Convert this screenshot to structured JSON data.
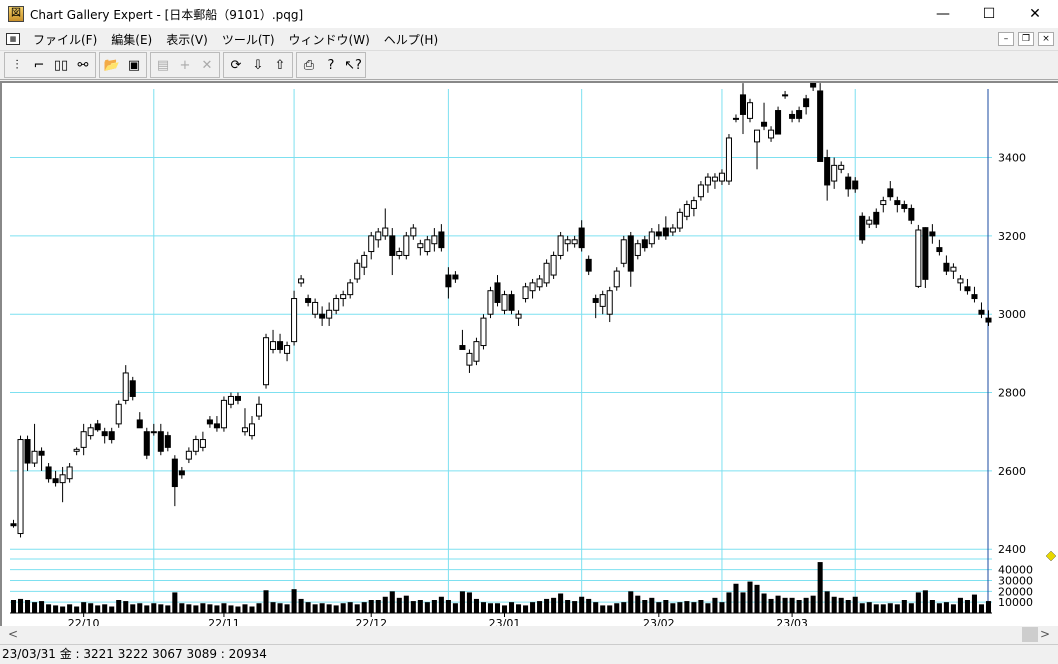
{
  "window": {
    "title": "Chart Gallery Expert - [日本郵船（9101）.pqg]",
    "minimize": "—",
    "maximize": "☐",
    "close": "✕"
  },
  "menu": [
    "ファイル(F)",
    "編集(E)",
    "表示(V)",
    "ツール(T)",
    "ウィンドウ(W)",
    "ヘルプ(H)"
  ],
  "mdi": {
    "minimize": "–",
    "restore": "❐",
    "close": "×"
  },
  "toolbar": {
    "groups": [
      [
        {
          "icon": "candle-chart-icon",
          "glyph": "⫶"
        },
        {
          "icon": "line-chart-icon",
          "glyph": "⌐"
        },
        {
          "icon": "dual-chart-icon",
          "glyph": "▯▯"
        },
        {
          "icon": "binoculars-icon",
          "glyph": "⚯"
        }
      ],
      [
        {
          "icon": "open-folder-icon",
          "glyph": "📂"
        },
        {
          "icon": "save-icon",
          "glyph": "▣"
        }
      ],
      [
        {
          "icon": "properties-icon",
          "glyph": "▤",
          "disabled": true
        },
        {
          "icon": "add-icon",
          "glyph": "+",
          "disabled": true
        },
        {
          "icon": "delete-icon",
          "glyph": "✕",
          "disabled": true
        }
      ],
      [
        {
          "icon": "refresh-icon",
          "glyph": "⟳"
        },
        {
          "icon": "download-icon",
          "glyph": "⇩"
        },
        {
          "icon": "upload-icon",
          "glyph": "⇧"
        }
      ],
      [
        {
          "icon": "print-icon",
          "glyph": "⎙"
        },
        {
          "icon": "help-icon",
          "glyph": "?"
        },
        {
          "icon": "context-help-icon",
          "glyph": "↖?"
        }
      ]
    ]
  },
  "status": "23/03/31 金 : 3221 3222 3067 3089  : 20934",
  "colors": {
    "grid": "#7de0f0",
    "up_fill": "#ffffff",
    "down_fill": "#000000",
    "marker": "#e8d800"
  },
  "chart_data": {
    "type": "candlestick",
    "y_ticks": [
      "3400",
      "3200",
      "3000",
      "2800",
      "2600",
      "2400"
    ],
    "y_tick_values": [
      3400,
      3200,
      3000,
      2800,
      2600,
      2400
    ],
    "ylim": [
      2375,
      3575
    ],
    "volume_ticks": [
      "40000",
      "30000",
      "20000",
      "10000"
    ],
    "volume_tick_values": [
      40000,
      30000,
      20000,
      10000
    ],
    "volume_lim": [
      0,
      48000
    ],
    "x_labels": [
      {
        "label": "22/10",
        "index": 10
      },
      {
        "label": "22/11",
        "index": 30
      },
      {
        "label": "22/12",
        "index": 51
      },
      {
        "label": "23/01",
        "index": 70
      },
      {
        "label": "23/02",
        "index": 92
      },
      {
        "label": "23/03",
        "index": 111
      }
    ],
    "gridlines_at_index": [
      20.5,
      40.5,
      62.5,
      81.5,
      101.5,
      120.5
    ],
    "candles": [
      [
        2465,
        2475,
        2455,
        2460,
        12000
      ],
      [
        2440,
        2690,
        2430,
        2680,
        13000
      ],
      [
        2680,
        2690,
        2600,
        2620,
        12000
      ],
      [
        2620,
        2720,
        2610,
        2650,
        10000
      ],
      [
        2650,
        2660,
        2600,
        2640,
        11000
      ],
      [
        2610,
        2620,
        2570,
        2580,
        8000
      ],
      [
        2580,
        2600,
        2560,
        2570,
        7000
      ],
      [
        2570,
        2610,
        2520,
        2590,
        6000
      ],
      [
        2580,
        2620,
        2570,
        2610,
        8000
      ],
      [
        2650,
        2660,
        2640,
        2655,
        6000
      ],
      [
        2660,
        2720,
        2640,
        2700,
        10000
      ],
      [
        2690,
        2720,
        2680,
        2710,
        9000
      ],
      [
        2720,
        2730,
        2700,
        2705,
        7000
      ],
      [
        2700,
        2710,
        2670,
        2690,
        8000
      ],
      [
        2700,
        2710,
        2670,
        2680,
        6000
      ],
      [
        2720,
        2780,
        2710,
        2770,
        12000
      ],
      [
        2780,
        2870,
        2770,
        2850,
        11000
      ],
      [
        2830,
        2840,
        2780,
        2790,
        8000
      ],
      [
        2730,
        2750,
        2710,
        2710,
        9000
      ],
      [
        2700,
        2710,
        2630,
        2640,
        7000
      ],
      [
        2700,
        2720,
        2690,
        2700,
        9000
      ],
      [
        2700,
        2720,
        2640,
        2650,
        8000
      ],
      [
        2690,
        2700,
        2650,
        2660,
        7000
      ],
      [
        2630,
        2640,
        2510,
        2560,
        19000
      ],
      [
        2600,
        2610,
        2580,
        2590,
        9000
      ],
      [
        2630,
        2660,
        2620,
        2650,
        8000
      ],
      [
        2650,
        2690,
        2640,
        2680,
        7000
      ],
      [
        2660,
        2700,
        2650,
        2680,
        9000
      ],
      [
        2730,
        2740,
        2710,
        2720,
        8000
      ],
      [
        2720,
        2740,
        2700,
        2710,
        7000
      ],
      [
        2710,
        2790,
        2700,
        2780,
        9000
      ],
      [
        2770,
        2800,
        2760,
        2790,
        7000
      ],
      [
        2790,
        2800,
        2770,
        2780,
        6000
      ],
      [
        2700,
        2760,
        2690,
        2710,
        8000
      ],
      [
        2690,
        2740,
        2680,
        2720,
        6000
      ],
      [
        2740,
        2790,
        2730,
        2770,
        9000
      ],
      [
        2820,
        2950,
        2810,
        2940,
        21000
      ],
      [
        2910,
        2960,
        2900,
        2930,
        10000
      ],
      [
        2930,
        2950,
        2900,
        2910,
        9000
      ],
      [
        2900,
        2930,
        2880,
        2920,
        8000
      ],
      [
        2930,
        3060,
        2920,
        3040,
        22000
      ],
      [
        3080,
        3100,
        3070,
        3090,
        13000
      ],
      [
        3040,
        3050,
        3020,
        3030,
        10000
      ],
      [
        3000,
        3040,
        2990,
        3030,
        8000
      ],
      [
        3000,
        3020,
        2970,
        2990,
        9000
      ],
      [
        2990,
        3030,
        2970,
        3010,
        8000
      ],
      [
        3010,
        3050,
        3000,
        3040,
        7000
      ],
      [
        3040,
        3060,
        3020,
        3050,
        9000
      ],
      [
        3050,
        3090,
        3040,
        3080,
        10000
      ],
      [
        3090,
        3140,
        3080,
        3130,
        8000
      ],
      [
        3120,
        3160,
        3100,
        3150,
        10000
      ],
      [
        3160,
        3210,
        3140,
        3200,
        12000
      ],
      [
        3190,
        3220,
        3170,
        3210,
        12000
      ],
      [
        3200,
        3270,
        3190,
        3220,
        15000
      ],
      [
        3200,
        3220,
        3100,
        3150,
        20000
      ],
      [
        3150,
        3170,
        3140,
        3160,
        14000
      ],
      [
        3150,
        3210,
        3140,
        3200,
        16000
      ],
      [
        3200,
        3230,
        3190,
        3220,
        11000
      ],
      [
        3170,
        3190,
        3150,
        3180,
        12000
      ],
      [
        3160,
        3200,
        3150,
        3190,
        10000
      ],
      [
        3180,
        3220,
        3160,
        3200,
        12000
      ],
      [
        3210,
        3230,
        3160,
        3170,
        15000
      ],
      [
        3100,
        3120,
        3040,
        3070,
        12000
      ],
      [
        3100,
        3110,
        3080,
        3090,
        9000
      ],
      [
        2920,
        2960,
        2910,
        2910,
        20000
      ],
      [
        2870,
        2910,
        2850,
        2900,
        19000
      ],
      [
        2880,
        2940,
        2870,
        2930,
        13000
      ],
      [
        2920,
        3000,
        2910,
        2990,
        10000
      ],
      [
        3000,
        3070,
        2990,
        3060,
        9000
      ],
      [
        3080,
        3100,
        3020,
        3030,
        9000
      ],
      [
        3010,
        3060,
        3000,
        3050,
        7000
      ],
      [
        3050,
        3060,
        3000,
        3010,
        10000
      ],
      [
        2990,
        3010,
        2970,
        3000,
        8000
      ],
      [
        3040,
        3080,
        3030,
        3070,
        7000
      ],
      [
        3060,
        3090,
        3040,
        3080,
        10000
      ],
      [
        3070,
        3100,
        3060,
        3090,
        11000
      ],
      [
        3080,
        3140,
        3070,
        3130,
        13000
      ],
      [
        3100,
        3160,
        3090,
        3150,
        14000
      ],
      [
        3150,
        3210,
        3140,
        3200,
        18000
      ],
      [
        3180,
        3200,
        3160,
        3190,
        12000
      ],
      [
        3180,
        3200,
        3170,
        3190,
        11000
      ],
      [
        3220,
        3240,
        3160,
        3170,
        15000
      ],
      [
        3140,
        3150,
        3100,
        3110,
        13000
      ],
      [
        3040,
        3050,
        2990,
        3030,
        10000
      ],
      [
        3020,
        3060,
        3000,
        3050,
        7000
      ],
      [
        3000,
        3070,
        2980,
        3060,
        7000
      ],
      [
        3070,
        3120,
        3060,
        3110,
        9000
      ],
      [
        3130,
        3200,
        3120,
        3190,
        10000
      ],
      [
        3200,
        3210,
        3070,
        3110,
        20000
      ],
      [
        3150,
        3190,
        3140,
        3180,
        16000
      ],
      [
        3190,
        3200,
        3160,
        3170,
        12000
      ],
      [
        3180,
        3220,
        3170,
        3210,
        14000
      ],
      [
        3210,
        3230,
        3190,
        3200,
        10000
      ],
      [
        3220,
        3250,
        3190,
        3200,
        12000
      ],
      [
        3210,
        3230,
        3200,
        3220,
        9000
      ],
      [
        3220,
        3270,
        3210,
        3260,
        10000
      ],
      [
        3250,
        3290,
        3240,
        3280,
        11000
      ],
      [
        3270,
        3300,
        3250,
        3290,
        10000
      ],
      [
        3300,
        3340,
        3290,
        3330,
        12000
      ],
      [
        3330,
        3360,
        3310,
        3350,
        9000
      ],
      [
        3340,
        3360,
        3320,
        3350,
        14000
      ],
      [
        3340,
        3370,
        3330,
        3360,
        10000
      ],
      [
        3340,
        3460,
        3330,
        3450,
        19000
      ],
      [
        3500,
        3510,
        3490,
        3500,
        27000
      ],
      [
        3560,
        3590,
        3460,
        3510,
        19000
      ],
      [
        3500,
        3550,
        3490,
        3540,
        29000
      ],
      [
        3440,
        3470,
        3370,
        3470,
        26000
      ],
      [
        3490,
        3540,
        3470,
        3480,
        18000
      ],
      [
        3450,
        3480,
        3440,
        3470,
        13000
      ],
      [
        3520,
        3530,
        3460,
        3460,
        16000
      ],
      [
        3560,
        3570,
        3550,
        3560,
        14000
      ],
      [
        3510,
        3520,
        3490,
        3500,
        14000
      ],
      [
        3520,
        3530,
        3490,
        3500,
        12000
      ],
      [
        3550,
        3560,
        3510,
        3530,
        14000
      ],
      [
        3600,
        3610,
        3570,
        3580,
        16000
      ],
      [
        3570,
        3590,
        3400,
        3390,
        47000
      ],
      [
        3400,
        3420,
        3290,
        3330,
        20000
      ],
      [
        3340,
        3400,
        3320,
        3380,
        15000
      ],
      [
        3370,
        3390,
        3360,
        3380,
        14000
      ],
      [
        3350,
        3360,
        3300,
        3320,
        12000
      ],
      [
        3340,
        3350,
        3310,
        3320,
        15000
      ],
      [
        3250,
        3260,
        3180,
        3190,
        9000
      ],
      [
        3230,
        3250,
        3220,
        3240,
        10000
      ],
      [
        3260,
        3270,
        3220,
        3230,
        8000
      ],
      [
        3280,
        3300,
        3260,
        3290,
        8000
      ],
      [
        3320,
        3340,
        3290,
        3300,
        9000
      ],
      [
        3290,
        3300,
        3260,
        3280,
        8000
      ],
      [
        3280,
        3290,
        3260,
        3270,
        12000
      ],
      [
        3270,
        3280,
        3230,
        3240,
        9000
      ],
      [
        3071,
        3228,
        3067,
        3215,
        19000
      ],
      [
        3221,
        3222,
        3067,
        3089,
        20934
      ],
      [
        3210,
        3230,
        3180,
        3200,
        12000
      ],
      [
        3170,
        3190,
        3150,
        3160,
        9000
      ],
      [
        3130,
        3150,
        3100,
        3110,
        10000
      ],
      [
        3110,
        3130,
        3090,
        3120,
        8000
      ],
      [
        3080,
        3100,
        3060,
        3090,
        14000
      ],
      [
        3070,
        3090,
        3050,
        3060,
        12000
      ],
      [
        3050,
        3070,
        3030,
        3040,
        17000
      ],
      [
        3010,
        3030,
        2990,
        3000,
        8000
      ],
      [
        2990,
        3010,
        2970,
        2980,
        11000
      ]
    ]
  }
}
